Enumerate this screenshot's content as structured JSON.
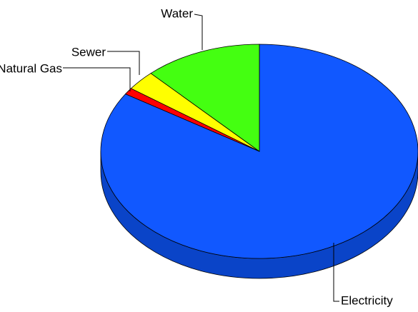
{
  "chart_data": {
    "type": "pie",
    "categories": [
      "Electricity",
      "Natural Gas",
      "Sewer",
      "Water"
    ],
    "values": [
      84,
      1,
      3,
      12
    ],
    "colors": [
      "#1158ff",
      "#ff0000",
      "#ffff00",
      "#44ff11"
    ],
    "side_colors": [
      "#0a44c8",
      "#b00000",
      "#b0b000",
      "#2fb00c"
    ]
  }
}
